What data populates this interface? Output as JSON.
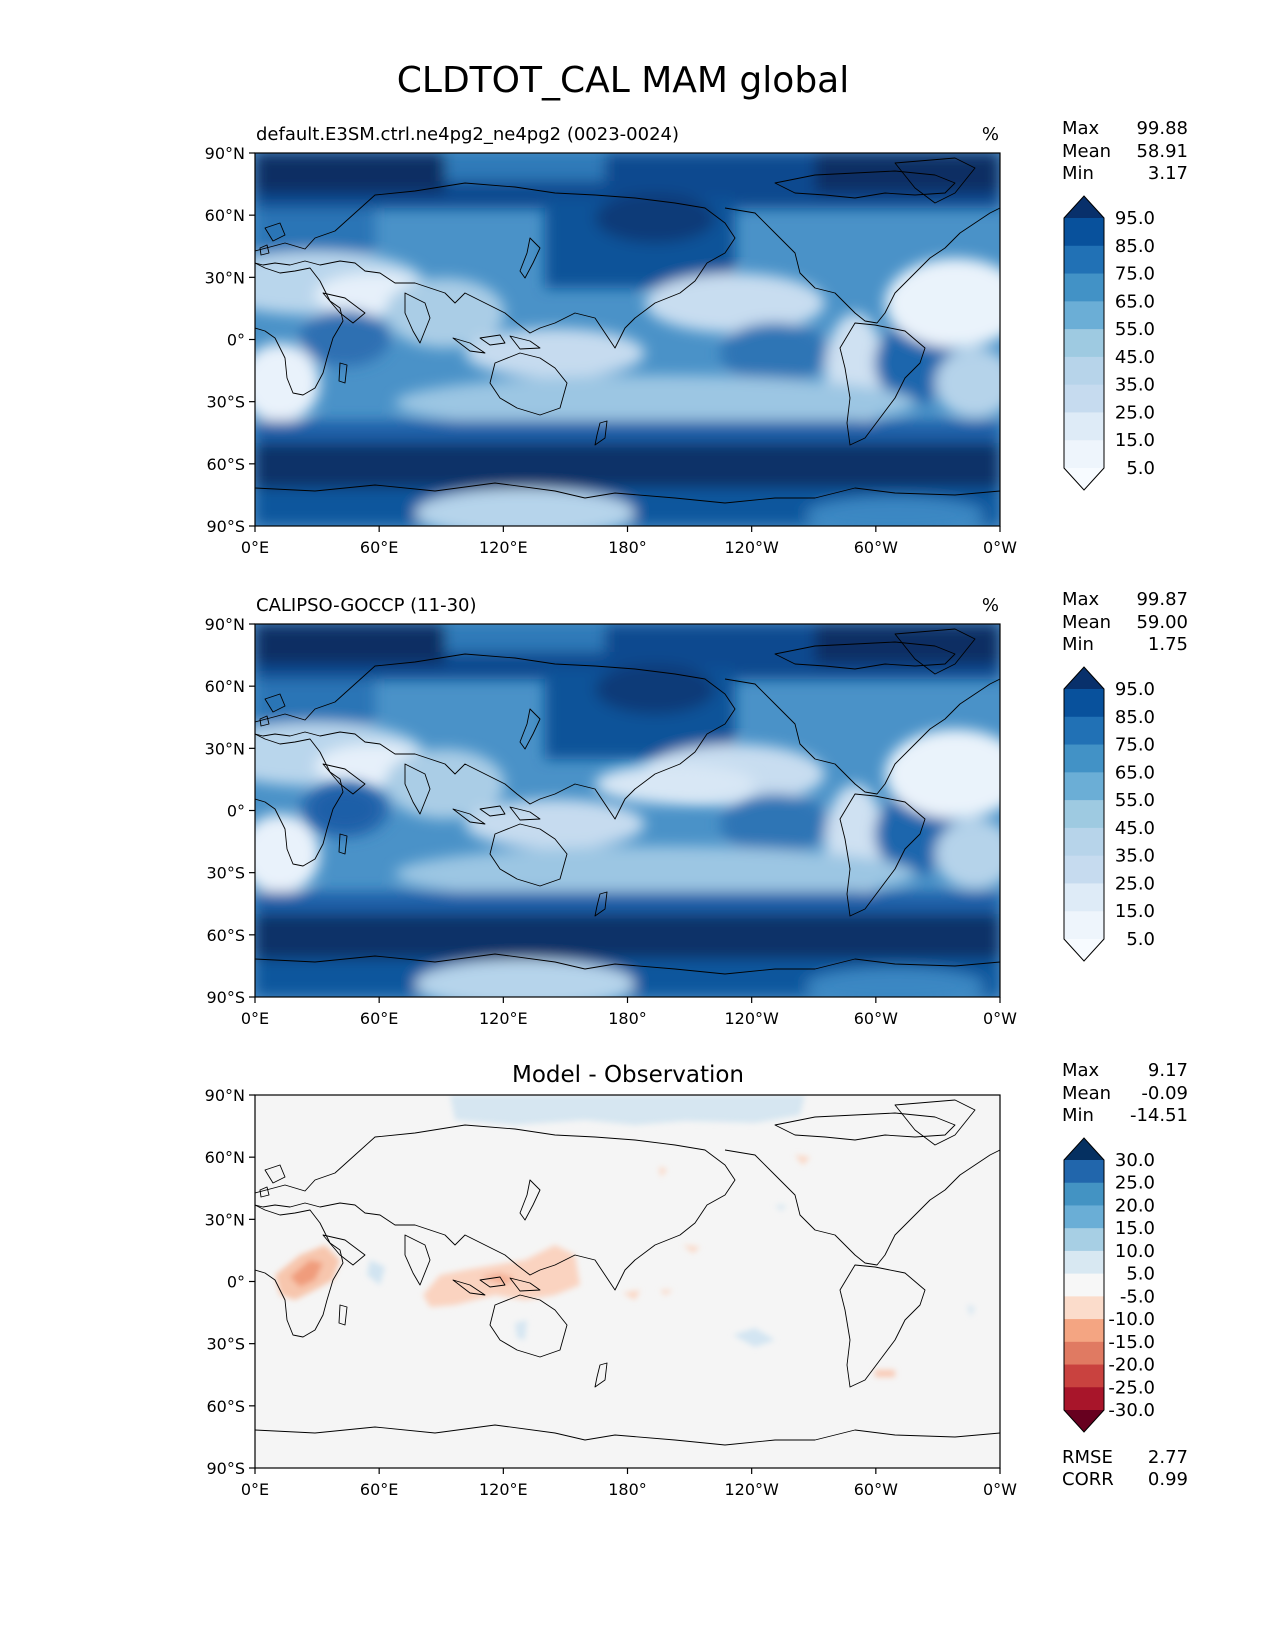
{
  "title": "CLDTOT_CAL MAM global",
  "x_ticks": [
    "0°E",
    "60°E",
    "120°E",
    "180°",
    "120°W",
    "60°W",
    "0°W"
  ],
  "y_ticks": [
    "90°N",
    "60°N",
    "30°N",
    "0°",
    "30°S",
    "60°S",
    "90°S"
  ],
  "panels": [
    {
      "id": "test",
      "title_left": "default.E3SM.ctrl.ne4pg2_ne4pg2 (0023-0024)",
      "title_right": "%",
      "stats": [
        {
          "label": "Max",
          "value": "99.88"
        },
        {
          "label": "Mean",
          "value": "58.91"
        },
        {
          "label": "Min",
          "value": "3.17"
        }
      ],
      "colorbar": {
        "labels": [
          "95.0",
          "85.0",
          "75.0",
          "65.0",
          "55.0",
          "45.0",
          "35.0",
          "25.0",
          "15.0",
          "5.0"
        ],
        "colors": [
          "#08306b",
          "#08519c",
          "#2171b5",
          "#4292c6",
          "#6baed6",
          "#9ecae1",
          "#b7d4ea",
          "#c6dbef",
          "#deebf7",
          "#eef5fc",
          "#f7fbff"
        ]
      }
    },
    {
      "id": "reference",
      "title_left": "CALIPSO-GOCCP (11-30)",
      "title_right": "%",
      "stats": [
        {
          "label": "Max",
          "value": "99.87"
        },
        {
          "label": "Mean",
          "value": "59.00"
        },
        {
          "label": "Min",
          "value": "1.75"
        }
      ],
      "colorbar": {
        "labels": [
          "95.0",
          "85.0",
          "75.0",
          "65.0",
          "55.0",
          "45.0",
          "35.0",
          "25.0",
          "15.0",
          "5.0"
        ],
        "colors": [
          "#08306b",
          "#08519c",
          "#2171b5",
          "#4292c6",
          "#6baed6",
          "#9ecae1",
          "#b7d4ea",
          "#c6dbef",
          "#deebf7",
          "#eef5fc",
          "#f7fbff"
        ]
      }
    },
    {
      "id": "diff",
      "title_center": "Model - Observation",
      "stats": [
        {
          "label": "Max",
          "value": "9.17"
        },
        {
          "label": "Mean",
          "value": "-0.09"
        },
        {
          "label": "Min",
          "value": "-14.51"
        }
      ],
      "colorbar": {
        "labels": [
          "30.0",
          "25.0",
          "20.0",
          "15.0",
          "10.0",
          "5.0",
          "-5.0",
          "-10.0",
          "-15.0",
          "-20.0",
          "-25.0",
          "-30.0"
        ],
        "colors": [
          "#053061",
          "#2166ac",
          "#4393c3",
          "#6aaed6",
          "#a7cfe4",
          "#d8e8f2",
          "#f7f7f7",
          "#fbdccb",
          "#f4a582",
          "#e07a62",
          "#c9423f",
          "#a8152a",
          "#67001f"
        ]
      },
      "bottom_stats": [
        {
          "label": "RMSE",
          "value": "2.77"
        },
        {
          "label": "CORR",
          "value": "0.99"
        }
      ]
    }
  ],
  "colors": {
    "model_field": [
      "#08306b",
      "#08519c",
      "#2171b5",
      "#4292c6",
      "#6baed6",
      "#9ecae1",
      "#c6dbef",
      "#deebf7",
      "#f7fbff"
    ],
    "diff_background": "#f5f5f5",
    "diff_positive": "#f4a582",
    "diff_negative": "#d1e5f0",
    "coastline": "#000000"
  }
}
